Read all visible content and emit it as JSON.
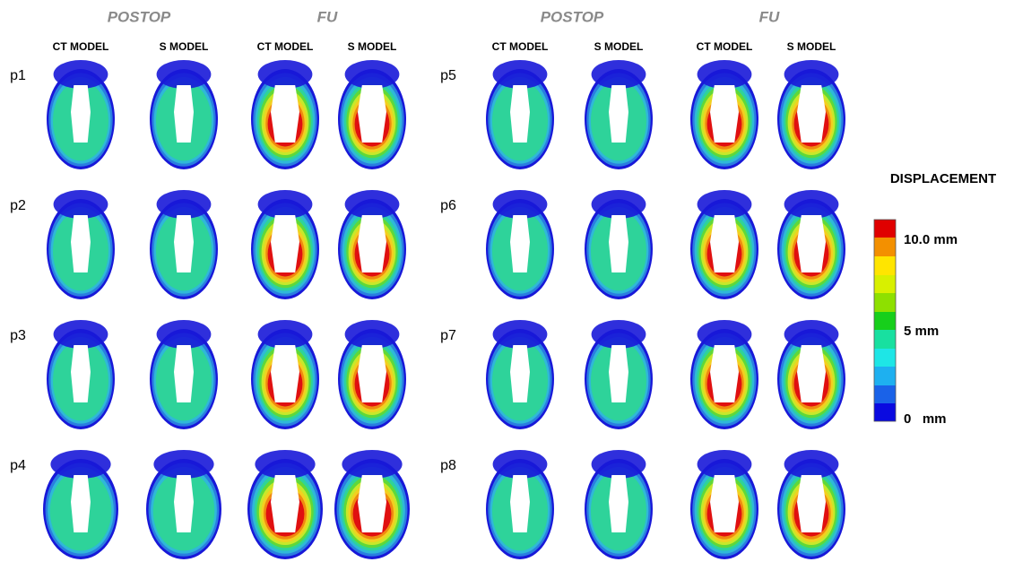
{
  "groups": [
    {
      "title": "POSTOP",
      "columns": [
        "CT MODEL",
        "S MODEL"
      ]
    },
    {
      "title": "FU",
      "columns": [
        "CT MODEL",
        "S MODEL"
      ]
    },
    {
      "title": "POSTOP",
      "columns": [
        "CT MODEL",
        "S MODEL"
      ]
    },
    {
      "title": "FU",
      "columns": [
        "CT MODEL",
        "S MODEL"
      ]
    }
  ],
  "rows": {
    "left": [
      "p1",
      "p2",
      "p3",
      "p4"
    ],
    "right": [
      "p5",
      "p6",
      "p7",
      "p8"
    ]
  },
  "legend": {
    "title": "DISPLACEMENT",
    "labels": [
      "10.0 mm",
      "5 mm",
      "0   mm"
    ]
  }
}
